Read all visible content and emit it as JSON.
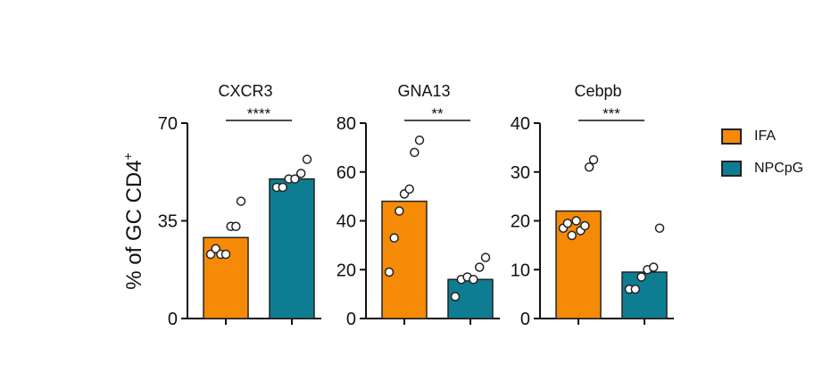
{
  "figure": {
    "ylabel_main": "% of GC CD4",
    "ylabel_sup": "+"
  },
  "legend": [
    {
      "label": "IFA",
      "color": "#f58a07"
    },
    {
      "label": "NPCpG",
      "color": "#0f7d91"
    }
  ],
  "chart_data": [
    {
      "type": "bar",
      "title": "CXCR3",
      "categories": [
        "IFA",
        "NPCpG"
      ],
      "values": [
        29,
        50
      ],
      "ylim": [
        0,
        70
      ],
      "yticks": [
        "0",
        "35",
        "70"
      ],
      "significance": "****",
      "points": [
        [
          23,
          25,
          23,
          23,
          33,
          33,
          42
        ],
        [
          47,
          47,
          50,
          50,
          52,
          57
        ]
      ]
    },
    {
      "type": "bar",
      "title": "GNA13",
      "categories": [
        "IFA",
        "NPCpG"
      ],
      "values": [
        48,
        16
      ],
      "ylim": [
        0,
        80
      ],
      "yticks": [
        "0",
        "20",
        "40",
        "60",
        "80"
      ],
      "significance": "**",
      "points": [
        [
          19,
          33,
          44,
          51,
          53,
          68,
          73
        ],
        [
          9,
          16,
          17,
          16,
          21,
          25
        ]
      ]
    },
    {
      "type": "bar",
      "title": "Cebpb",
      "categories": [
        "IFA",
        "NPCpG"
      ],
      "values": [
        22,
        9.5
      ],
      "ylim": [
        0,
        40
      ],
      "yticks": [
        "0",
        "10",
        "20",
        "30",
        "40"
      ],
      "significance": "***",
      "points": [
        [
          18.5,
          19.5,
          17,
          20,
          18,
          19,
          31,
          32.5
        ],
        [
          6,
          6,
          8.5,
          10,
          10.5,
          18.5
        ]
      ]
    }
  ]
}
